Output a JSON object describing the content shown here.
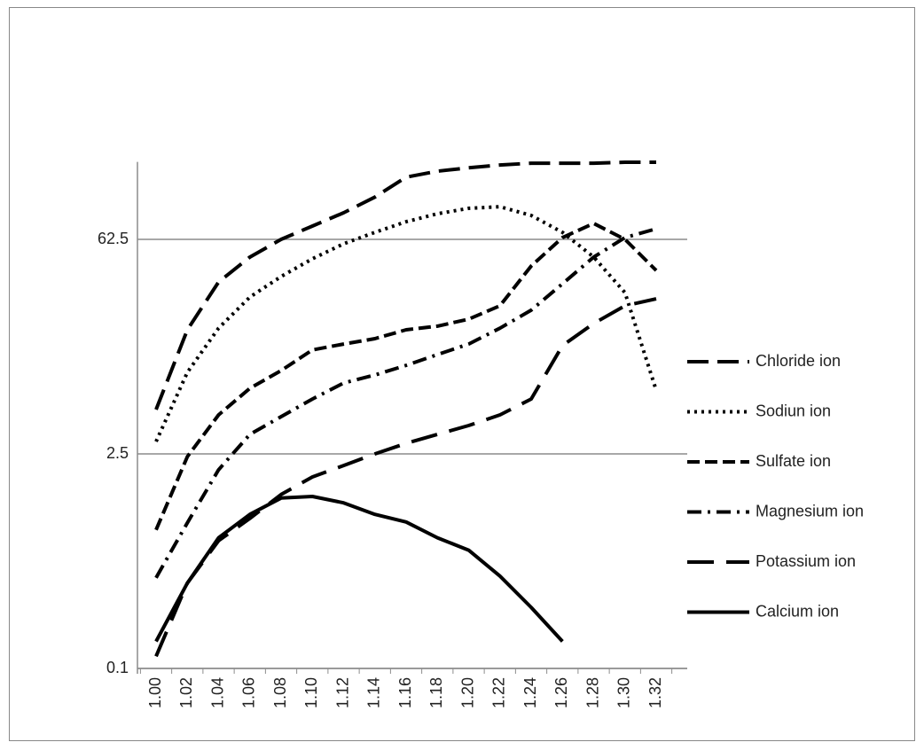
{
  "chart_data": {
    "type": "line",
    "log_scale": true,
    "grid": true,
    "legend": "right",
    "categories": [
      "1.00",
      "1.02",
      "1.04",
      "1.06",
      "1.08",
      "1.10",
      "1.12",
      "1.14",
      "1.16",
      "1.18",
      "1.20",
      "1.22",
      "1.24",
      "1.26",
      "1.28",
      "1.30",
      "1.32"
    ],
    "ylim": [
      0.1,
      200
    ],
    "yticks": [
      0.1,
      2.5,
      62.5
    ],
    "series": [
      {
        "name": "Chloride ion",
        "color": "#000000",
        "dash": "24 10",
        "values": [
          4.86,
          16.1,
          33.0,
          47.9,
          62.5,
          76.3,
          93.2,
          118,
          159,
          174,
          183,
          191,
          196,
          196,
          196,
          199,
          199
        ]
      },
      {
        "name": "Sodiun ion",
        "color": "#000000",
        "dash": "3 5",
        "values": [
          3.01,
          8.5,
          16.5,
          26.3,
          35.8,
          46.7,
          58.5,
          69.5,
          81.5,
          91.9,
          99.6,
          102,
          89.5,
          69.5,
          48,
          28.1,
          6.5
        ]
      },
      {
        "name": "Sulfate ion",
        "color": "#000000",
        "dash": "14 6",
        "values": [
          0.8,
          2.4,
          4.49,
          6.69,
          8.73,
          11.9,
          13.0,
          14.1,
          16.1,
          17.0,
          18.9,
          23.1,
          41.9,
          64.2,
          79.4,
          62.5,
          39.2
        ]
      },
      {
        "name": "Magnesium ion",
        "color": "#000000",
        "dash": "16 7 3 7",
        "values": [
          0.39,
          0.89,
          1.97,
          3.35,
          4.37,
          5.7,
          7.25,
          8.17,
          9.45,
          11.1,
          13.0,
          16.5,
          21.6,
          32.1,
          47.9,
          64.2,
          73.3
        ]
      },
      {
        "name": "Potassium ion",
        "color": "#000000",
        "dash": "30 14",
        "values": [
          0.12,
          0.36,
          0.68,
          0.95,
          1.36,
          1.77,
          2.1,
          2.5,
          2.93,
          3.35,
          3.83,
          4.49,
          5.7,
          12.7,
          17.7,
          23.1,
          25.6
        ]
      },
      {
        "name": "Calcium ion",
        "color": "#000000",
        "dash": "none",
        "values": [
          0.15,
          0.36,
          0.71,
          1.01,
          1.29,
          1.32,
          1.2,
          1.01,
          0.9,
          0.71,
          0.59,
          0.4,
          0.25,
          0.15,
          null,
          null,
          null
        ]
      }
    ]
  }
}
